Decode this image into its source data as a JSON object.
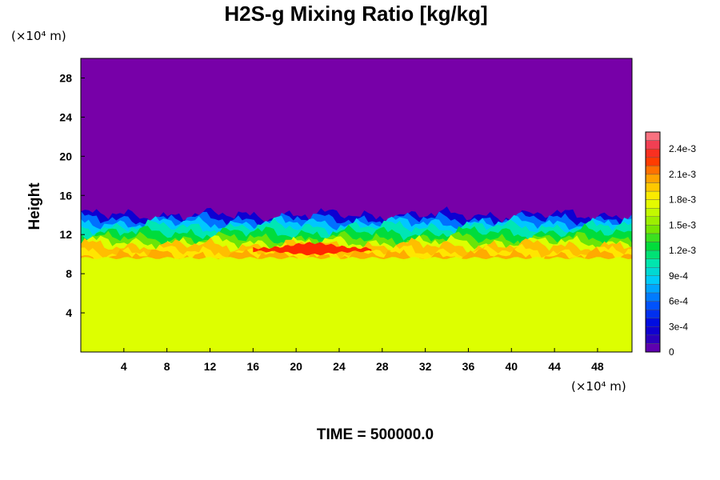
{
  "chart_data": {
    "type": "heatmap",
    "title": "H2S-g Mixing Ratio [kg/kg]",
    "ylabel": "Height",
    "xlabel": "",
    "x_unit_label": "(×10⁴ m)",
    "y_unit_label": "(×10⁴ m)",
    "xlim": [
      0,
      51.2
    ],
    "ylim": [
      0,
      30
    ],
    "x_ticks": [
      4,
      8,
      12,
      16,
      20,
      24,
      28,
      32,
      36,
      40,
      44,
      48
    ],
    "y_ticks": [
      4,
      8,
      12,
      16,
      20,
      24,
      28
    ],
    "colorbar": {
      "range": [
        0,
        0.0026
      ],
      "tick_values": [
        0,
        0.0003,
        0.0006,
        0.0009,
        0.0012,
        0.0015,
        0.0018,
        0.0021,
        0.0024
      ],
      "tick_labels": [
        "0",
        "3e-4",
        "6e-4",
        "9e-4",
        "1.2e-3",
        "1.5e-3",
        "1.8e-3",
        "2.1e-3",
        "2.4e-3"
      ],
      "colormap": "rainbow (purple → blue → cyan → green → yellow → orange → red → pink)"
    },
    "regions": [
      {
        "layer": "lower",
        "height_range": [
          0,
          9.5
        ],
        "value": 0.00175,
        "color": "#ddff00"
      },
      {
        "layer": "mixing",
        "height_range": [
          9.5,
          14
        ],
        "value_range": [
          0.0003,
          0.0023
        ]
      },
      {
        "layer": "upper",
        "height_range": [
          14,
          30
        ],
        "value": 0,
        "color": "#7700a8"
      }
    ],
    "time_label": "TIME = 500000.0",
    "grid": false
  }
}
